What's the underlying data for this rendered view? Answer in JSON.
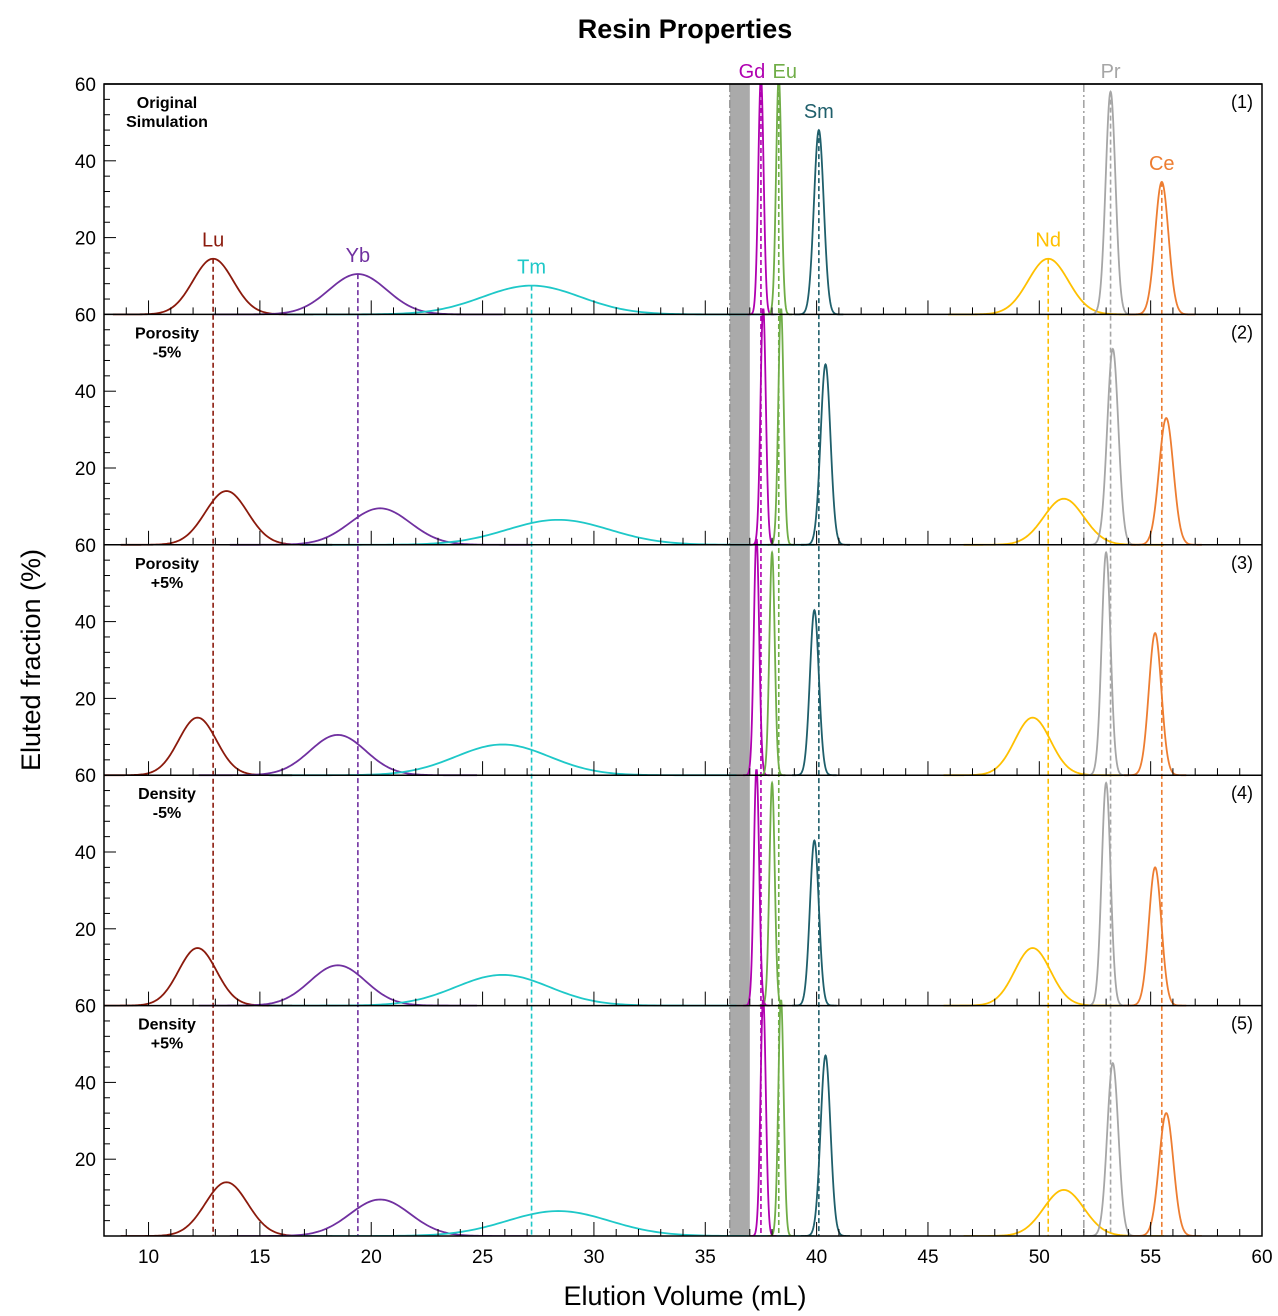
{
  "chart_data": {
    "type": "line",
    "title": "Resin Properties",
    "xlabel": "Elution Volume (mL)",
    "ylabel": "Eluted fraction (%)",
    "xlim": [
      8,
      60
    ],
    "ylim": [
      0,
      60
    ],
    "x_ticks": [
      10,
      15,
      20,
      25,
      30,
      35,
      40,
      45,
      50,
      55,
      60
    ],
    "y_ticks": [
      20,
      40,
      60
    ],
    "grid": false,
    "shaded_band": {
      "x_range": [
        36.1,
        37.0
      ],
      "color": "#aaaaaa"
    },
    "dashdot_lines": [
      {
        "x": 36.1,
        "color": "#888888"
      },
      {
        "x": 52.0,
        "color": "#888888"
      }
    ],
    "series": [
      {
        "name": "Lu",
        "color": "#8b1a0c",
        "ref_x": 12.9
      },
      {
        "name": "Yb",
        "color": "#7030a0",
        "ref_x": 19.4
      },
      {
        "name": "Tm",
        "color": "#1ec8c8",
        "ref_x": 27.2
      },
      {
        "name": "Gd",
        "color": "#b000b0",
        "ref_x": 37.5
      },
      {
        "name": "Eu",
        "color": "#70ad47",
        "ref_x": 38.3
      },
      {
        "name": "Sm",
        "color": "#1f5f6b",
        "ref_x": 40.1
      },
      {
        "name": "Nd",
        "color": "#ffc000",
        "ref_x": 50.4
      },
      {
        "name": "Pr",
        "color": "#a6a6a6",
        "ref_x": 53.2
      },
      {
        "name": "Ce",
        "color": "#ed7d31",
        "ref_x": 55.5
      }
    ],
    "panels": [
      {
        "label_lines": [
          "Original",
          "Simulation"
        ],
        "number": "(1)",
        "peaks": [
          {
            "name": "Lu",
            "center": 12.9,
            "width": 0.9,
            "height": 14.5
          },
          {
            "name": "Yb",
            "center": 19.4,
            "width": 1.3,
            "height": 10.5
          },
          {
            "name": "Tm",
            "center": 27.2,
            "width": 2.2,
            "height": 7.5
          },
          {
            "name": "Gd",
            "center": 37.5,
            "width": 0.12,
            "height": 62
          },
          {
            "name": "Eu",
            "center": 38.3,
            "width": 0.12,
            "height": 62
          },
          {
            "name": "Sm",
            "center": 40.1,
            "width": 0.22,
            "height": 48
          },
          {
            "name": "Nd",
            "center": 50.4,
            "width": 0.9,
            "height": 14.5
          },
          {
            "name": "Pr",
            "center": 53.2,
            "width": 0.22,
            "height": 58
          },
          {
            "name": "Ce",
            "center": 55.5,
            "width": 0.3,
            "height": 34.5
          }
        ]
      },
      {
        "label_lines": [
          "Porosity",
          "-5%"
        ],
        "number": "(2)",
        "peaks": [
          {
            "name": "Lu",
            "center": 13.5,
            "width": 0.95,
            "height": 14
          },
          {
            "name": "Yb",
            "center": 20.4,
            "width": 1.35,
            "height": 9.5
          },
          {
            "name": "Tm",
            "center": 28.4,
            "width": 2.3,
            "height": 6.5
          },
          {
            "name": "Gd",
            "center": 37.6,
            "width": 0.12,
            "height": 62
          },
          {
            "name": "Eu",
            "center": 38.4,
            "width": 0.12,
            "height": 62
          },
          {
            "name": "Sm",
            "center": 40.4,
            "width": 0.22,
            "height": 47
          },
          {
            "name": "Nd",
            "center": 51.1,
            "width": 0.9,
            "height": 12
          },
          {
            "name": "Pr",
            "center": 53.3,
            "width": 0.25,
            "height": 51
          },
          {
            "name": "Ce",
            "center": 55.7,
            "width": 0.32,
            "height": 33
          }
        ]
      },
      {
        "label_lines": [
          "Porosity",
          "+5%"
        ],
        "number": "(3)",
        "peaks": [
          {
            "name": "Lu",
            "center": 12.2,
            "width": 0.85,
            "height": 15
          },
          {
            "name": "Yb",
            "center": 18.5,
            "width": 1.25,
            "height": 10.5
          },
          {
            "name": "Tm",
            "center": 25.9,
            "width": 2.1,
            "height": 8
          },
          {
            "name": "Gd",
            "center": 37.3,
            "width": 0.12,
            "height": 62
          },
          {
            "name": "Eu",
            "center": 38.0,
            "width": 0.12,
            "height": 58
          },
          {
            "name": "Sm",
            "center": 39.9,
            "width": 0.2,
            "height": 43
          },
          {
            "name": "Nd",
            "center": 49.7,
            "width": 0.8,
            "height": 15
          },
          {
            "name": "Pr",
            "center": 53.0,
            "width": 0.2,
            "height": 58
          },
          {
            "name": "Ce",
            "center": 55.2,
            "width": 0.28,
            "height": 37
          }
        ]
      },
      {
        "label_lines": [
          "Density",
          "-5%"
        ],
        "number": "(4)",
        "peaks": [
          {
            "name": "Lu",
            "center": 12.2,
            "width": 0.85,
            "height": 15
          },
          {
            "name": "Yb",
            "center": 18.5,
            "width": 1.25,
            "height": 10.5
          },
          {
            "name": "Tm",
            "center": 25.9,
            "width": 2.1,
            "height": 8
          },
          {
            "name": "Gd",
            "center": 37.3,
            "width": 0.12,
            "height": 62
          },
          {
            "name": "Eu",
            "center": 38.0,
            "width": 0.12,
            "height": 58
          },
          {
            "name": "Sm",
            "center": 39.9,
            "width": 0.2,
            "height": 43
          },
          {
            "name": "Nd",
            "center": 49.7,
            "width": 0.8,
            "height": 15
          },
          {
            "name": "Pr",
            "center": 53.0,
            "width": 0.2,
            "height": 58
          },
          {
            "name": "Ce",
            "center": 55.2,
            "width": 0.28,
            "height": 36
          }
        ]
      },
      {
        "label_lines": [
          "Density",
          "+5%"
        ],
        "number": "(5)",
        "peaks": [
          {
            "name": "Lu",
            "center": 13.5,
            "width": 0.95,
            "height": 14
          },
          {
            "name": "Yb",
            "center": 20.4,
            "width": 1.35,
            "height": 9.5
          },
          {
            "name": "Tm",
            "center": 28.4,
            "width": 2.3,
            "height": 6.5
          },
          {
            "name": "Gd",
            "center": 37.6,
            "width": 0.12,
            "height": 62
          },
          {
            "name": "Eu",
            "center": 38.4,
            "width": 0.12,
            "height": 62
          },
          {
            "name": "Sm",
            "center": 40.4,
            "width": 0.22,
            "height": 47
          },
          {
            "name": "Nd",
            "center": 51.1,
            "width": 0.9,
            "height": 12
          },
          {
            "name": "Pr",
            "center": 53.3,
            "width": 0.25,
            "height": 45
          },
          {
            "name": "Ce",
            "center": 55.7,
            "width": 0.32,
            "height": 32
          }
        ]
      }
    ]
  }
}
